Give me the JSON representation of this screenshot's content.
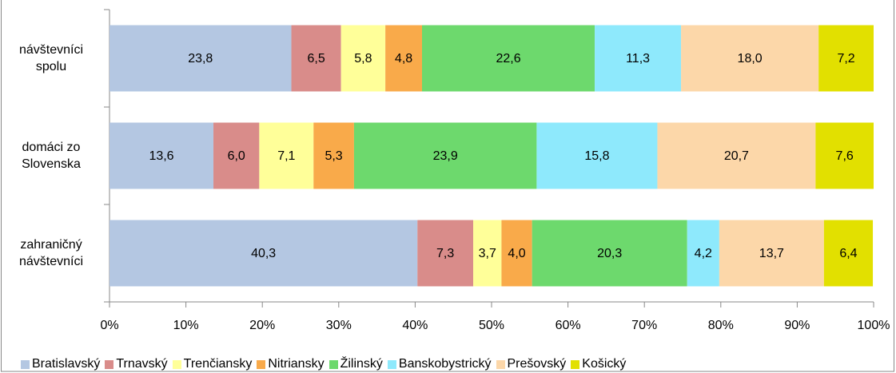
{
  "chart_data": {
    "type": "stacked_bar_horizontal",
    "categories": [
      "návštevníci spolu",
      "domáci zo Slovenska",
      "zahraničný návštevníci"
    ],
    "series": [
      {
        "name": "Bratislavský",
        "color": "#b4c7e2",
        "values": [
          23.8,
          13.6,
          40.3
        ],
        "value_labels": [
          "23,8",
          "13,6",
          "40,3"
        ]
      },
      {
        "name": "Trnavský",
        "color": "#d98c8a",
        "values": [
          6.5,
          6.0,
          7.3
        ],
        "value_labels": [
          "6,5",
          "6,0",
          "7,3"
        ]
      },
      {
        "name": "Trenčiansky",
        "color": "#ffff99",
        "values": [
          5.8,
          7.1,
          3.7
        ],
        "value_labels": [
          "5,8",
          "7,1",
          "3,7"
        ]
      },
      {
        "name": "Nitriansky",
        "color": "#f9aa4a",
        "values": [
          4.8,
          5.3,
          4.0
        ],
        "value_labels": [
          "4,8",
          "5,3",
          "4,0"
        ]
      },
      {
        "name": "Žilinský",
        "color": "#6dd96d",
        "values": [
          22.6,
          23.9,
          20.3
        ],
        "value_labels": [
          "22,6",
          "23,9",
          "20,3"
        ]
      },
      {
        "name": "Banskobystrický",
        "color": "#8ee9fc",
        "values": [
          11.3,
          15.8,
          4.2
        ],
        "value_labels": [
          "11,3",
          "15,8",
          "4,2"
        ]
      },
      {
        "name": "Prešovský",
        "color": "#fcd7a9",
        "values": [
          18.0,
          20.7,
          13.7
        ],
        "value_labels": [
          "18,0",
          "20,7",
          "13,7"
        ]
      },
      {
        "name": "Košický",
        "color": "#e2e000",
        "values": [
          7.2,
          7.6,
          6.4
        ],
        "value_labels": [
          "7,2",
          "7,6",
          "6,4"
        ]
      }
    ],
    "xlim": [
      0,
      100
    ],
    "xticks": [
      {
        "value": 0,
        "label": "0%"
      },
      {
        "value": 10,
        "label": "10%"
      },
      {
        "value": 20,
        "label": "20%"
      },
      {
        "value": 30,
        "label": "30%"
      },
      {
        "value": 40,
        "label": "40%"
      },
      {
        "value": 50,
        "label": "50%"
      },
      {
        "value": 60,
        "label": "60%"
      },
      {
        "value": 70,
        "label": "70%"
      },
      {
        "value": 80,
        "label": "80%"
      },
      {
        "value": 90,
        "label": "90%"
      },
      {
        "value": 100,
        "label": "100%"
      }
    ],
    "legend": "bottom"
  }
}
